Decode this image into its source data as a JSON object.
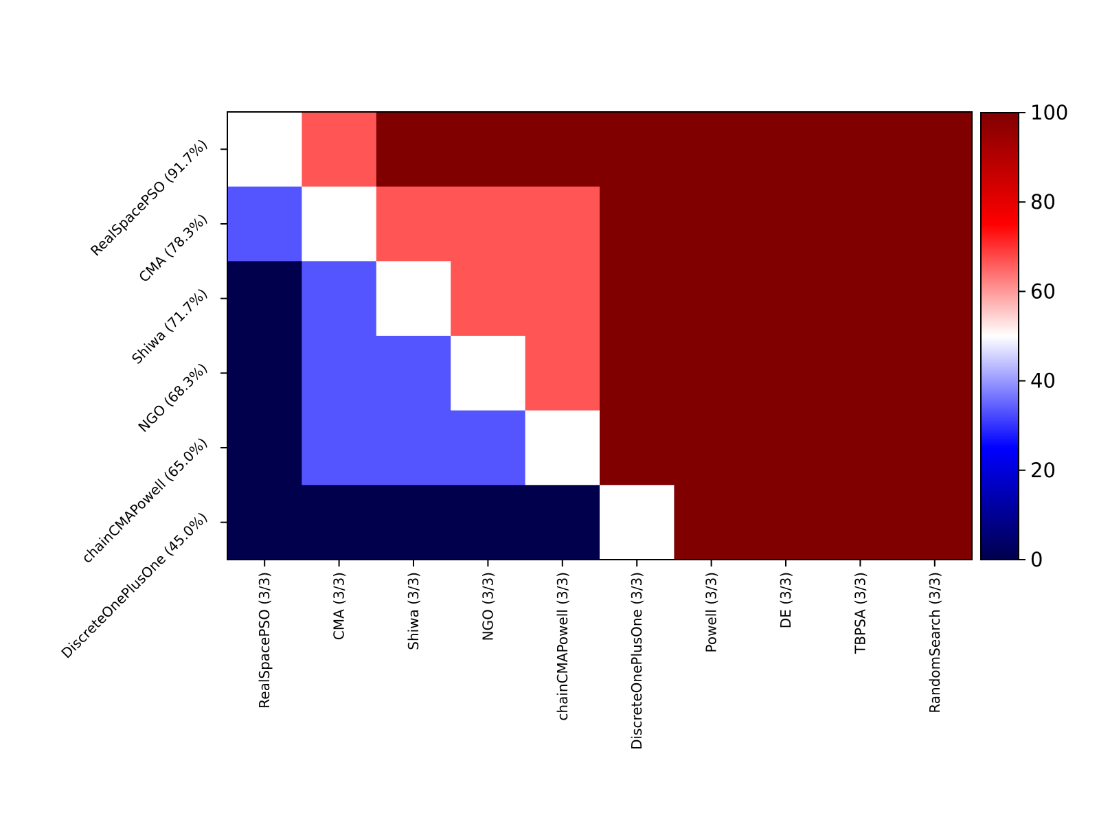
{
  "chart_data": {
    "type": "heatmap",
    "title": "",
    "xlabel": "",
    "ylabel": "",
    "rows": [
      "RealSpacePSO (91.7%)",
      "CMA (78.3%)",
      "Shiwa (71.7%)",
      "NGO (68.3%)",
      "chainCMAPowell (65.0%)",
      "DiscreteOnePlusOne (45.0%)"
    ],
    "columns": [
      "RealSpacePSO (3/3)",
      "CMA (3/3)",
      "Shiwa (3/3)",
      "NGO (3/3)",
      "chainCMAPowell (3/3)",
      "DiscreteOnePlusOne (3/3)",
      "Powell (3/3)",
      "DE (3/3)",
      "TBPSA (3/3)",
      "RandomSearch (3/3)"
    ],
    "values": [
      [
        50,
        66.7,
        100,
        100,
        100,
        100,
        100,
        100,
        100,
        100
      ],
      [
        33.3,
        50,
        66.7,
        66.7,
        66.7,
        100,
        100,
        100,
        100,
        100
      ],
      [
        0,
        33.3,
        50,
        66.7,
        66.7,
        100,
        100,
        100,
        100,
        100
      ],
      [
        0,
        33.3,
        33.3,
        50,
        66.7,
        100,
        100,
        100,
        100,
        100
      ],
      [
        0,
        33.3,
        33.3,
        33.3,
        50,
        100,
        100,
        100,
        100,
        100
      ],
      [
        0,
        0,
        0,
        0,
        0,
        50,
        100,
        100,
        100,
        100
      ]
    ],
    "colormap": "seismic",
    "colorbar": {
      "range": [
        0,
        100
      ],
      "ticks": [
        "0",
        "20",
        "40",
        "60",
        "80",
        "100"
      ]
    },
    "colors": {
      "low": "#00004c",
      "mid_low": "#0000ff",
      "mid": "#ffffff",
      "mid_high": "#ff0000",
      "high": "#800000"
    }
  }
}
